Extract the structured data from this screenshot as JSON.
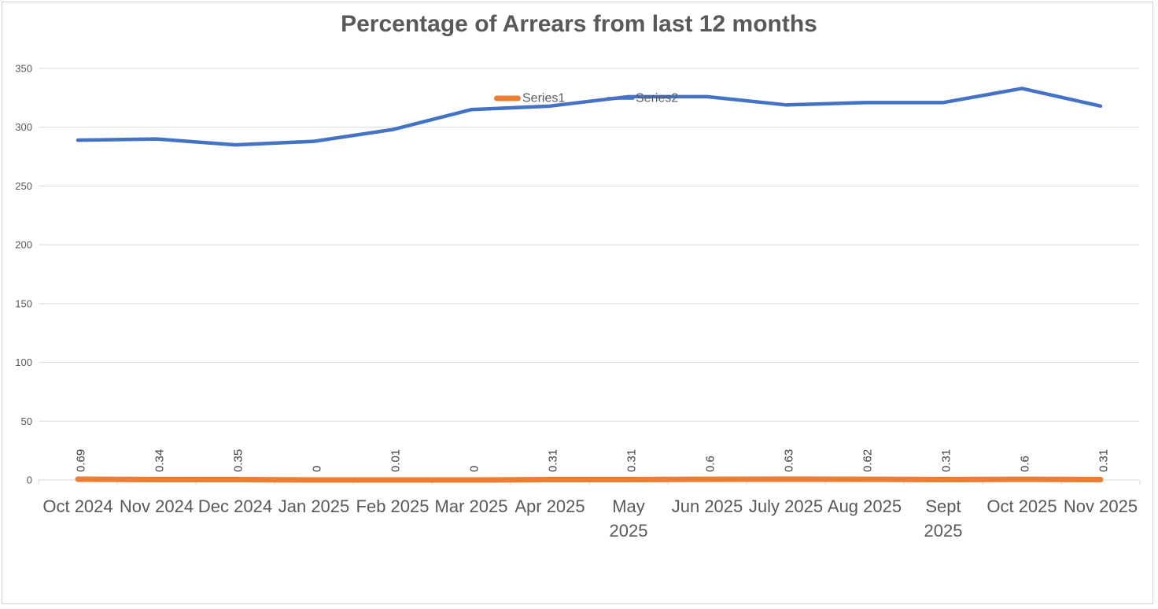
{
  "page": {
    "background": "#FFFFFF",
    "border_color": "#D2D2D2"
  },
  "chart": {
    "title": "Percentage of Arrears from last 12 months",
    "title_color": "#595959",
    "legend": [
      {
        "label": "Series1",
        "color": "#ED7D31",
        "marker": "thick-rounded-line"
      },
      {
        "label": "Series2",
        "color": "#4472C4",
        "marker": "line"
      }
    ]
  },
  "chart_data": {
    "type": "line",
    "title": "Percentage of Arrears from last 12 months",
    "categories": [
      "Oct 2024",
      "Nov 2024",
      "Dec 2024",
      "Jan 2025",
      "Feb 2025",
      "Mar 2025",
      "Apr 2025",
      "May 2025",
      "Jun 2025",
      "July 2025",
      "Aug 2025",
      "Sept 2025",
      "Oct 2025",
      "Nov 2025"
    ],
    "category_display_lines": [
      [
        "Oct 2024"
      ],
      [
        "Nov 2024"
      ],
      [
        "Dec 2024"
      ],
      [
        "Jan 2025"
      ],
      [
        "Feb 2025"
      ],
      [
        "Mar 2025"
      ],
      [
        "Apr 2025"
      ],
      [
        "May",
        "2025"
      ],
      [
        "Jun 2025"
      ],
      [
        "July 2025"
      ],
      [
        "Aug 2025"
      ],
      [
        "Sept",
        "2025"
      ],
      [
        "Oct 2025"
      ],
      [
        "Nov 2025"
      ]
    ],
    "series": [
      {
        "name": "Series1",
        "color": "#ED7D31",
        "stroke_width": 7,
        "values": [
          0.69,
          0.34,
          0.35,
          0,
          0.01,
          0,
          0.31,
          0.31,
          0.6,
          0.63,
          0.62,
          0.31,
          0.6,
          0.31
        ],
        "data_labels": [
          "0.69",
          "0.34",
          "0.35",
          "0",
          "0.01",
          "0",
          "0.31",
          "0.31",
          "0.6",
          "0.63",
          "0.62",
          "0.31",
          "0.6",
          "0.31"
        ],
        "data_label_color": "#404040"
      },
      {
        "name": "Series2",
        "color": "#4472C4",
        "stroke_width": 4.5,
        "values": [
          289,
          290,
          285,
          288,
          298,
          315,
          318,
          326,
          326,
          319,
          321,
          321,
          333,
          318
        ]
      }
    ],
    "y_axis": {
      "ticks": [
        0,
        50,
        100,
        150,
        200,
        250,
        300,
        350
      ],
      "range": [
        0,
        350
      ],
      "label_color": "#595959"
    },
    "x_axis": {
      "label_color": "#595959",
      "tick_color": "#D9D9D9"
    },
    "grid": {
      "show": true,
      "color": "#D9D9D9"
    },
    "legend_position": "overlay-upper-middle"
  }
}
